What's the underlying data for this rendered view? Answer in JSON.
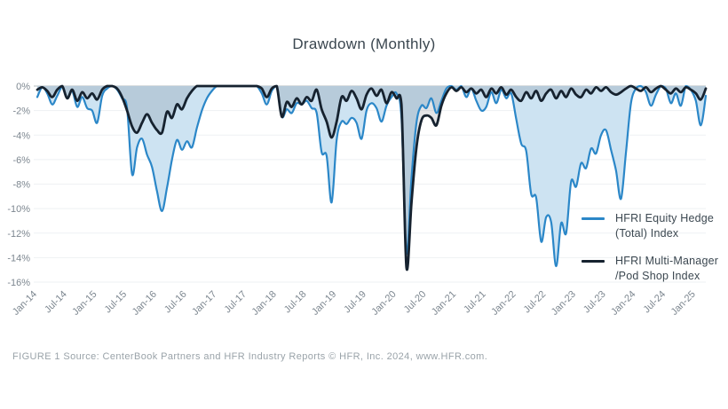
{
  "title": "Drawdown (Monthly)",
  "footer": "FIGURE 1 Source: CenterBook Partners and HFR Industry Reports © HFR, Inc. 2024, www.HFR.com.",
  "legend": {
    "items": [
      {
        "line1": "HFRI Equity Hedge",
        "line2": "(Total) Index",
        "color": "#2b87c8"
      },
      {
        "line1": "HFRI Multi-Manager",
        "line2": "/Pod Shop Index",
        "color": "#16222f"
      }
    ]
  },
  "colors": {
    "equity_line": "#2b87c8",
    "equity_fill": "#cde3f2",
    "multimanager_line": "#16222f",
    "multimanager_fill": "rgba(22,34,47,0.12)",
    "gridline": "#eef1f3",
    "zero_line": "#c3c9cd",
    "tick_text": "#7d8790"
  },
  "chart_data": {
    "type": "area",
    "title": "Drawdown (Monthly)",
    "x_start": "Jan-2014",
    "frequency": "monthly",
    "n_points": 135,
    "grid": "horizontal",
    "legend_position": "inside-right",
    "ylim": [
      -16,
      0
    ],
    "ytick_labels": [
      "0%",
      "-2%",
      "-4%",
      "-6%",
      "-8%",
      "-10%",
      "-12%",
      "-14%",
      "-16%"
    ],
    "ytick_values": [
      0,
      -2,
      -4,
      -6,
      -8,
      -10,
      -12,
      -14,
      -16
    ],
    "xtick_labels": [
      "Jan-14",
      "Jul-14",
      "Jan-15",
      "Jul-15",
      "Jan-16",
      "Jul-16",
      "Jan-17",
      "Jul-17",
      "Jan-18",
      "Jul-18",
      "Jan-19",
      "Jul-19",
      "Jan-20",
      "Jul-20",
      "Jan-21",
      "Jul-21",
      "Jan-22",
      "Jul-22",
      "Jan-23",
      "Jul-23",
      "Jan-24",
      "Jul-24",
      "Jan-25"
    ],
    "xtick_month_indices": [
      0,
      6,
      12,
      18,
      24,
      30,
      36,
      42,
      48,
      54,
      60,
      66,
      72,
      78,
      84,
      90,
      96,
      102,
      108,
      114,
      120,
      126,
      132
    ],
    "series": [
      {
        "name": "HFRI Equity Hedge (Total) Index",
        "values": [
          -0.9,
          -0.1,
          -0.6,
          -1.5,
          -0.8,
          -0.1,
          -1.0,
          -0.4,
          -1.7,
          -0.9,
          -1.8,
          -2.0,
          -3.0,
          -0.8,
          -0.2,
          0,
          -0.3,
          -1.0,
          -1.8,
          -7.2,
          -5.0,
          -4.3,
          -5.6,
          -6.6,
          -8.6,
          -10.2,
          -8.3,
          -6.0,
          -4.4,
          -5.2,
          -4.5,
          -5.0,
          -3.4,
          -2.0,
          -1.0,
          -0.4,
          0,
          0,
          0,
          0,
          0,
          0,
          0,
          0,
          0,
          -0.6,
          -1.5,
          -0.4,
          0,
          -2.5,
          -1.9,
          -2.2,
          -1.4,
          -1.5,
          -1.2,
          -1.8,
          -2.2,
          -5.4,
          -5.7,
          -9.5,
          -4.4,
          -2.9,
          -3.1,
          -2.6,
          -3.0,
          -4.3,
          -2.0,
          -1.4,
          -1.8,
          -2.9,
          -1.6,
          -0.9,
          -0.6,
          -2.6,
          -13.6,
          -7.5,
          -3.0,
          -1.6,
          -1.8,
          -1.0,
          -2.2,
          -1.2,
          -0.2,
          0,
          -0.3,
          0,
          -0.9,
          -0.2,
          -1.2,
          -2.0,
          -1.7,
          -0.5,
          -1.4,
          -0.3,
          -1.0,
          -0.6,
          -2.7,
          -4.7,
          -5.3,
          -8.8,
          -9.1,
          -12.7,
          -10.7,
          -11.1,
          -14.7,
          -11.2,
          -12.0,
          -7.8,
          -8.2,
          -6.3,
          -6.7,
          -5.1,
          -5.5,
          -4.0,
          -3.6,
          -5.2,
          -6.9,
          -9.2,
          -5.4,
          -1.4,
          -0.2,
          0,
          -0.5,
          -1.6,
          -0.7,
          0,
          -0.2,
          -1.4,
          -0.6,
          -1.6,
          0,
          -0.3,
          -1.2,
          -3.2,
          -0.8
        ]
      },
      {
        "name": "HFRI Multi-Manager/Pod Shop Index",
        "values": [
          -0.3,
          -0.1,
          -0.4,
          -0.9,
          -0.3,
          0,
          -1.0,
          -0.3,
          -1.2,
          -0.5,
          -1.0,
          -0.6,
          -1.1,
          -0.3,
          0,
          0,
          -0.2,
          -0.9,
          -2.0,
          -3.3,
          -3.8,
          -3.0,
          -2.3,
          -3.0,
          -3.6,
          -3.8,
          -2.1,
          -2.6,
          -1.5,
          -1.9,
          -1.0,
          -0.4,
          0,
          0,
          0,
          0,
          0,
          0,
          0,
          0,
          0,
          0,
          0,
          0,
          0,
          -0.2,
          -0.9,
          -0.2,
          0,
          -2.5,
          -1.3,
          -1.7,
          -1.0,
          -1.5,
          -0.9,
          -1.2,
          -0.3,
          -1.9,
          -2.9,
          -4.2,
          -2.9,
          -0.9,
          -1.2,
          -0.4,
          -1.0,
          -1.9,
          -0.7,
          -0.2,
          -0.8,
          -0.3,
          -1.4,
          -0.5,
          -1.0,
          -1.5,
          -14.8,
          -9.5,
          -5.0,
          -2.8,
          -2.4,
          -2.6,
          -3.2,
          -1.6,
          -0.6,
          -0.1,
          -0.4,
          -0.1,
          -0.5,
          -0.2,
          -0.6,
          -0.3,
          -0.9,
          -0.2,
          -0.6,
          -0.1,
          -0.7,
          -0.3,
          -0.9,
          -1.2,
          -0.5,
          -1.0,
          -0.4,
          -1.2,
          -0.6,
          -0.3,
          -1.0,
          -0.4,
          -0.9,
          -0.2,
          -0.7,
          -0.9,
          -0.3,
          -0.6,
          -0.1,
          -0.4,
          -0.1,
          -0.5,
          -0.7,
          -0.5,
          -0.2,
          0,
          -0.2,
          -0.4,
          -0.1,
          -0.5,
          -0.2,
          0,
          -0.3,
          -0.6,
          -0.2,
          -0.5,
          -0.1,
          -0.3,
          -0.6,
          -1.1,
          -0.2
        ]
      }
    ]
  }
}
